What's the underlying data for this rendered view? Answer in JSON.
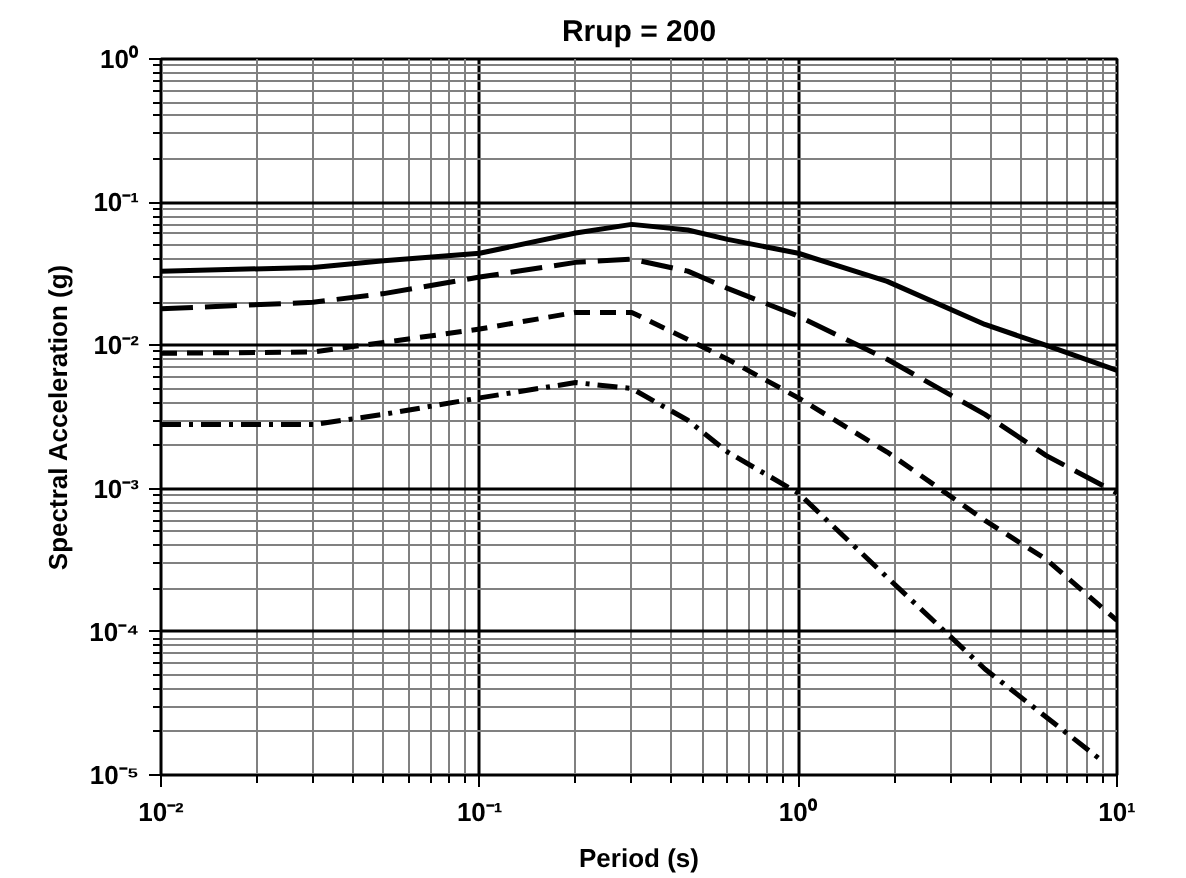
{
  "chart_data": {
    "type": "line",
    "title": "Rrup = 200",
    "xlabel": "Period (s)",
    "ylabel": "Spectral Acceleration (g)",
    "log": "xy",
    "grid": true,
    "x": [
      0.01,
      0.03,
      0.05,
      0.1,
      0.2,
      0.3,
      0.45,
      0.6,
      1,
      1.9,
      3.85,
      6,
      10
    ],
    "xlim": [
      0.01,
      10
    ],
    "ylim": [
      1e-05,
      1
    ],
    "xticks": [
      {
        "value": 0.01,
        "label": "10⁻²"
      },
      {
        "value": 0.1,
        "label": "10⁻¹"
      },
      {
        "value": 1,
        "label": "10⁰"
      },
      {
        "value": 10,
        "label": "10¹"
      }
    ],
    "yticks": [
      {
        "value": 1e-05,
        "label": "10⁻⁵"
      },
      {
        "value": 0.0001,
        "label": "10⁻⁴"
      },
      {
        "value": 0.001,
        "label": "10⁻³"
      },
      {
        "value": 0.01,
        "label": "10⁻²"
      },
      {
        "value": 0.1,
        "label": "10⁻¹"
      },
      {
        "value": 1,
        "label": "10⁰"
      }
    ],
    "series": [
      {
        "color": "#000000",
        "line_style": "solid",
        "values": [
          0.033,
          0.035,
          0.039,
          0.044,
          0.061,
          0.07,
          0.064,
          0.055,
          0.044,
          0.028,
          0.014,
          0.01,
          0.0067
        ]
      },
      {
        "color": "#000000",
        "line_style": "longdash",
        "values": [
          0.018,
          0.02,
          0.023,
          0.03,
          0.038,
          0.04,
          0.033,
          0.025,
          0.016,
          0.008,
          0.0033,
          0.0017,
          0.00093
        ]
      },
      {
        "color": "#000000",
        "line_style": "dashed",
        "values": [
          0.0088,
          0.009,
          0.0105,
          0.013,
          0.017,
          0.017,
          0.011,
          0.008,
          0.0043,
          0.0018,
          0.0006,
          0.00032,
          0.00012
        ]
      },
      {
        "color": "#000000",
        "line_style": "dashdot",
        "x": [
          0.01,
          0.03,
          0.05,
          0.1,
          0.2,
          0.3,
          0.45,
          0.6,
          1,
          1.9,
          3.85,
          8.8
        ],
        "values": [
          0.0028,
          0.0028,
          0.0033,
          0.0043,
          0.0055,
          0.005,
          0.003,
          0.0018,
          0.00093,
          0.00024,
          5.5e-05,
          1.3e-05
        ]
      }
    ]
  }
}
